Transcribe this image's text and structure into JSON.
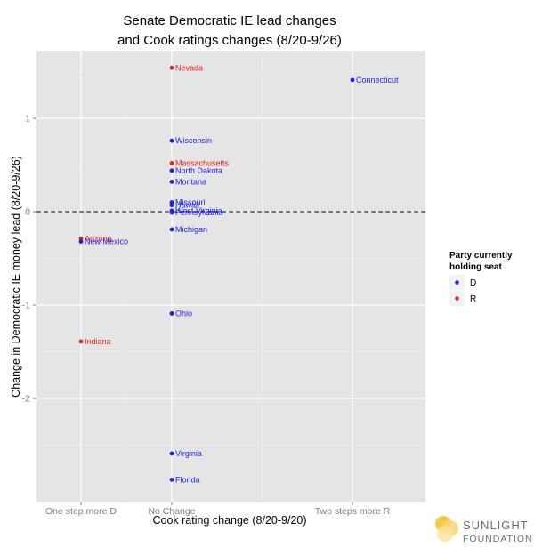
{
  "chart_data": {
    "type": "scatter",
    "title": "Senate Democratic IE lead changes",
    "subtitle": "and Cook ratings changes (8/20-9/26)",
    "xlabel": "Cook rating change (8/20-9/20)",
    "ylabel": "Change in Democratic IE money lead (8/20-9/26)",
    "x_categories": [
      "One step more D",
      "No Change",
      "Two steps more R"
    ],
    "y_ticks": [
      1,
      0,
      -1,
      -2
    ],
    "ylim": [
      -3.1,
      1.75
    ],
    "grid": true,
    "zero_line": "dashed",
    "legend": {
      "title_line1": "Party currently",
      "title_line2": "holding seat",
      "placement": "right",
      "entries": [
        {
          "label": "D",
          "color": "#1f1fe6"
        },
        {
          "label": "R",
          "color": "#e62222"
        }
      ]
    },
    "points": [
      {
        "label": "Nevada",
        "x": "No Change",
        "y": 1.54,
        "party": "R"
      },
      {
        "label": "Connecticut",
        "x": "Two steps more R",
        "y": 1.41,
        "party": "D"
      },
      {
        "label": "Wisconsin",
        "x": "No Change",
        "y": 0.76,
        "party": "D"
      },
      {
        "label": "Massachusetts",
        "x": "No Change",
        "y": 0.52,
        "party": "R"
      },
      {
        "label": "North Dakota",
        "x": "No Change",
        "y": 0.44,
        "party": "D"
      },
      {
        "label": "Montana",
        "x": "No Change",
        "y": 0.32,
        "party": "D"
      },
      {
        "label": "Missouri",
        "x": "No Change",
        "y": 0.1,
        "party": "D"
      },
      {
        "label": "Hawaii",
        "x": "No Change",
        "y": 0.07,
        "party": "D"
      },
      {
        "label": "West Virginia",
        "x": "No Change",
        "y": 0.01,
        "party": "D"
      },
      {
        "label": "Pennsylvania",
        "x": "No Change",
        "y": -0.01,
        "party": "D"
      },
      {
        "label": "Michigan",
        "x": "No Change",
        "y": -0.19,
        "party": "D"
      },
      {
        "label": "Arizona",
        "x": "One step more D",
        "y": -0.29,
        "party": "R"
      },
      {
        "label": "New Mexico",
        "x": "One step more D",
        "y": -0.32,
        "party": "D"
      },
      {
        "label": "Ohio",
        "x": "No Change",
        "y": -1.09,
        "party": "D"
      },
      {
        "label": "Indiana",
        "x": "One step more D",
        "y": -1.39,
        "party": "R"
      },
      {
        "label": "Virginia",
        "x": "No Change",
        "y": -2.59,
        "party": "D"
      },
      {
        "label": "Florida",
        "x": "No Change",
        "y": -2.87,
        "party": "D"
      }
    ]
  },
  "colors": {
    "panel_bg": "#e5e5e5",
    "grid_major": "#ffffff",
    "grid_minor": "#f0f0f0",
    "D": "#1f1fe6",
    "R": "#e62222",
    "logo_yellow": "#f2c12e"
  },
  "logo": {
    "line1": "SUNLIGHT",
    "line2": "FOUNDATION",
    "icon": "sunlight-logo-icon"
  }
}
